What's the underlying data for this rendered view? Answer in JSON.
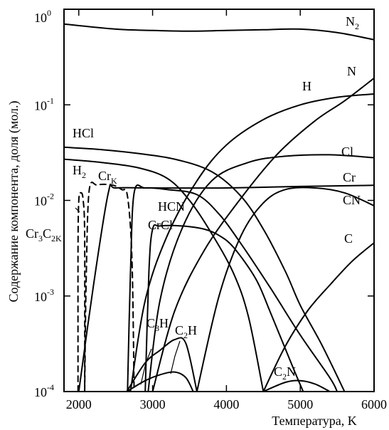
{
  "chart_data": {
    "type": "line",
    "title": "",
    "xlabel": "Температура, K",
    "ylabel": "Содержание компонента, доля (мол.)",
    "xlim": [
      1800,
      6000
    ],
    "ylim": [
      0.0001,
      1
    ],
    "yscale": "log",
    "grid": false,
    "x_ticks": [
      {
        "value": 2000,
        "label": "2000"
      },
      {
        "value": 3000,
        "label": "3000"
      },
      {
        "value": 4000,
        "label": "4000"
      },
      {
        "value": 5000,
        "label": "5000"
      },
      {
        "value": 6000,
        "label": "6000"
      }
    ],
    "y_ticks": [
      {
        "value": 1,
        "base": "10",
        "exp": "0"
      },
      {
        "value": 0.1,
        "base": "10",
        "exp": "-1"
      },
      {
        "value": 0.01,
        "base": "10",
        "exp": "-2"
      },
      {
        "value": 0.001,
        "base": "10",
        "exp": "-3"
      },
      {
        "value": 0.0001,
        "base": "10",
        "exp": "-4"
      }
    ],
    "series": [
      {
        "name": "N2",
        "label": [
          "N",
          "2",
          ""
        ],
        "style": "solid",
        "points": [
          [
            1800,
            0.7
          ],
          [
            2500,
            0.62
          ],
          [
            3000,
            0.6
          ],
          [
            3500,
            0.59
          ],
          [
            4000,
            0.6
          ],
          [
            4500,
            0.61
          ],
          [
            5000,
            0.62
          ],
          [
            5500,
            0.57
          ],
          [
            6000,
            0.48
          ]
        ]
      },
      {
        "name": "HCl",
        "label": [
          "HCl",
          "",
          ""
        ],
        "style": "solid",
        "points": [
          [
            1800,
            0.036
          ],
          [
            2300,
            0.034
          ],
          [
            2800,
            0.031
          ],
          [
            3300,
            0.027
          ],
          [
            3800,
            0.02
          ],
          [
            4200,
            0.011
          ],
          [
            4500,
            0.005
          ],
          [
            4800,
            0.0018
          ],
          [
            5000,
            0.0008
          ],
          [
            5300,
            0.0003
          ],
          [
            5600,
            0.0001
          ]
        ]
      },
      {
        "name": "H2",
        "label": [
          "H",
          "2",
          ""
        ],
        "style": "solid",
        "points": [
          [
            1800,
            0.027
          ],
          [
            2300,
            0.025
          ],
          [
            2800,
            0.022
          ],
          [
            3200,
            0.017
          ],
          [
            3500,
            0.01
          ],
          [
            3800,
            0.0045
          ],
          [
            4100,
            0.0017
          ],
          [
            4300,
            0.0006
          ],
          [
            4500,
            0.0001
          ]
        ]
      },
      {
        "name": "H",
        "label": [
          "H",
          "",
          ""
        ],
        "style": "solid",
        "points": [
          [
            2700,
            0.0001
          ],
          [
            2900,
            0.0009
          ],
          [
            3200,
            0.0043
          ],
          [
            3600,
            0.016
          ],
          [
            4000,
            0.038
          ],
          [
            4500,
            0.07
          ],
          [
            5000,
            0.1
          ],
          [
            5500,
            0.12
          ],
          [
            6000,
            0.13
          ]
        ]
      },
      {
        "name": "N",
        "label": [
          "N",
          "",
          ""
        ],
        "style": "solid",
        "points": [
          [
            3000,
            0.0001
          ],
          [
            3300,
            0.0007
          ],
          [
            3700,
            0.003
          ],
          [
            4200,
            0.0106
          ],
          [
            4700,
            0.031
          ],
          [
            5200,
            0.068
          ],
          [
            5600,
            0.11
          ],
          [
            6000,
            0.19
          ]
        ]
      },
      {
        "name": "Cl",
        "label": [
          "Cl",
          "",
          ""
        ],
        "style": "solid",
        "points": [
          [
            2940,
            0.0001
          ],
          [
            3100,
            0.0009
          ],
          [
            3400,
            0.0051
          ],
          [
            3800,
            0.016
          ],
          [
            4300,
            0.025
          ],
          [
            4800,
            0.029
          ],
          [
            5400,
            0.03
          ],
          [
            6000,
            0.028
          ]
        ]
      },
      {
        "name": "Cr",
        "label": [
          "Cr",
          "",
          ""
        ],
        "style": "solid",
        "points": [
          [
            2000,
            0.0001
          ],
          [
            2200,
            0.0013
          ],
          [
            2400,
            0.012
          ],
          [
            2500,
            0.0135
          ],
          [
            3000,
            0.0135
          ],
          [
            4000,
            0.0135
          ],
          [
            5000,
            0.014
          ],
          [
            5800,
            0.0143
          ],
          [
            6000,
            0.0144
          ]
        ]
      },
      {
        "name": "CN",
        "label": [
          "CN",
          "",
          ""
        ],
        "style": "solid",
        "points": [
          [
            3600,
            0.0001
          ],
          [
            3900,
            0.001
          ],
          [
            4200,
            0.0043
          ],
          [
            4500,
            0.0094
          ],
          [
            4800,
            0.013
          ],
          [
            5200,
            0.0135
          ],
          [
            5600,
            0.012
          ],
          [
            6000,
            0.0088
          ]
        ]
      },
      {
        "name": "C",
        "label": [
          "C",
          "",
          ""
        ],
        "style": "solid",
        "points": [
          [
            4500,
            0.0001
          ],
          [
            4800,
            0.0003
          ],
          [
            5100,
            0.0007
          ],
          [
            5400,
            0.0013
          ],
          [
            5700,
            0.0023
          ],
          [
            6000,
            0.0036
          ]
        ]
      },
      {
        "name": "HCN",
        "label": [
          "HCN",
          "",
          ""
        ],
        "style": "solid",
        "points": [
          [
            2660,
            0.0001
          ],
          [
            2700,
            0.0017
          ],
          [
            2750,
            0.012
          ],
          [
            2900,
            0.0135
          ],
          [
            3200,
            0.013
          ],
          [
            3600,
            0.0115
          ],
          [
            3900,
            0.0072
          ],
          [
            4200,
            0.0035
          ],
          [
            4600,
            0.0012
          ],
          [
            5000,
            0.00039
          ],
          [
            5400,
            0.00014
          ],
          [
            5500,
            0.0001
          ]
        ]
      },
      {
        "name": "CrCl",
        "label": [
          "CrCl",
          "",
          ""
        ],
        "style": "solid",
        "points": [
          [
            2900,
            0.0001
          ],
          [
            2950,
            0.0018
          ],
          [
            3000,
            0.005
          ],
          [
            3100,
            0.0054
          ],
          [
            3400,
            0.0054
          ],
          [
            3700,
            0.005
          ],
          [
            3900,
            0.0043
          ],
          [
            4100,
            0.0032
          ],
          [
            4400,
            0.0015
          ],
          [
            4600,
            0.00066
          ],
          [
            4900,
            0.00018
          ],
          [
            5040,
            0.0001
          ]
        ]
      },
      {
        "name": "C3H",
        "label": [
          "C",
          "3",
          "H"
        ],
        "style": "solid",
        "points": [
          [
            2650,
            0.0001
          ],
          [
            2900,
            0.0002
          ],
          [
            3100,
            0.00027
          ],
          [
            3300,
            0.00035
          ],
          [
            3450,
            0.00032
          ],
          [
            3600,
            0.0001
          ]
        ]
      },
      {
        "name": "C2H",
        "label": [
          "C",
          "2",
          "H"
        ],
        "style": "solid",
        "points": [
          [
            2650,
            0.0001
          ],
          [
            2900,
            0.00013
          ],
          [
            3100,
            0.00015
          ],
          [
            3300,
            0.00016
          ],
          [
            3450,
            0.00014
          ],
          [
            3550,
            0.0001
          ]
        ]
      },
      {
        "name": "C2N",
        "label": [
          "C",
          "2",
          "N"
        ],
        "style": "solid",
        "points": [
          [
            4500,
            0.0001
          ],
          [
            4800,
            0.000125
          ],
          [
            5000,
            0.00013
          ],
          [
            5200,
            0.00012
          ],
          [
            5400,
            0.0001
          ]
        ]
      },
      {
        "name": "CrK",
        "label": [
          "Cr",
          "K",
          ""
        ],
        "style": "dashed",
        "points": [
          [
            2080,
            0.0001
          ],
          [
            2100,
            0.0014
          ],
          [
            2140,
            0.0125
          ],
          [
            2250,
            0.0145
          ],
          [
            2450,
            0.0145
          ],
          [
            2580,
            0.013
          ],
          [
            2660,
            0.011
          ],
          [
            2720,
            0.0025
          ],
          [
            2750,
            0.0001
          ]
        ]
      },
      {
        "name": "Cr3C2K",
        "label": [
          "Cr",
          "3",
          "C",
          "2K"
        ],
        "style": "dashed",
        "points": [
          [
            1990,
            0.0001
          ],
          [
            1990,
            0.003
          ],
          [
            2000,
            0.01
          ],
          [
            2030,
            0.012
          ],
          [
            2060,
            0.01
          ],
          [
            2080,
            0.004
          ],
          [
            2080,
            0.0001
          ]
        ]
      }
    ]
  }
}
